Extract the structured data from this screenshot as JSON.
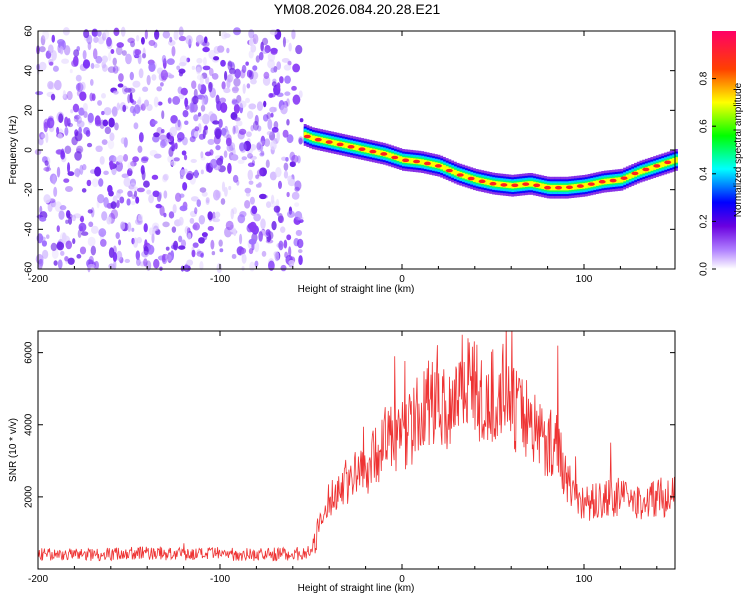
{
  "title": "YM08.2026.084.20.28.E21",
  "chart_data": [
    {
      "type": "heatmap",
      "xlabel": "Height of straight line (km)",
      "ylabel": "Frequency (Hz)",
      "xlim": [
        -200,
        150
      ],
      "ylim": [
        -60,
        60
      ],
      "x_ticks": [
        "-200",
        "-100",
        "0",
        "100"
      ],
      "y_ticks": [
        "-60",
        "-40",
        "-20",
        "0",
        "20",
        "40",
        "60"
      ],
      "colorbar": {
        "label": "Normalized spectral amplitude",
        "range": [
          0,
          1
        ],
        "ticks": [
          "0.0",
          "0.2",
          "0.4",
          "0.6",
          "0.8"
        ],
        "colors": [
          "#ffffff",
          "#8a2be2",
          "#0000ff",
          "#00ffff",
          "#00ff00",
          "#ffff00",
          "#ff0000",
          "#ff0080"
        ]
      },
      "noise_region": {
        "x_range": [
          -200,
          -55
        ],
        "color": "#7b2ff7"
      },
      "signal_ridge": {
        "x": [
          -60,
          -50,
          -40,
          -30,
          -20,
          -10,
          0,
          10,
          20,
          30,
          40,
          50,
          60,
          70,
          80,
          90,
          100,
          110,
          120,
          130,
          140,
          150
        ],
        "y": [
          10,
          6,
          4,
          2,
          0,
          -2,
          -5,
          -6,
          -8,
          -12,
          -15,
          -17,
          -18,
          -17,
          -19,
          -19,
          -18,
          -16,
          -15,
          -11,
          -8,
          -5
        ]
      }
    },
    {
      "type": "line",
      "xlabel": "Height of straight line (km)",
      "ylabel": "SNR (10 * v/v)",
      "xlim": [
        -200,
        150
      ],
      "ylim": [
        0,
        6600
      ],
      "x_ticks": [
        "-200",
        "-100",
        "0",
        "100"
      ],
      "y_ticks": [
        "2000",
        "4000",
        "6000"
      ],
      "color": "#ee3333",
      "series": [
        {
          "x": [
            -200,
            -180,
            -160,
            -140,
            -120,
            -100,
            -80,
            -60,
            -50,
            -45,
            -40,
            -35,
            -30,
            -25,
            -20,
            -15,
            -10,
            -5,
            0,
            5,
            10,
            15,
            20,
            25,
            30,
            35,
            40,
            45,
            50,
            55,
            60,
            65,
            70,
            75,
            80,
            85,
            90,
            95,
            100,
            110,
            120,
            130,
            140,
            150
          ],
          "y": [
            400,
            400,
            420,
            450,
            400,
            420,
            400,
            420,
            450,
            1200,
            1900,
            2200,
            2500,
            2600,
            2800,
            3100,
            3600,
            3600,
            3700,
            3900,
            4300,
            4600,
            4900,
            4300,
            5100,
            5400,
            5100,
            4300,
            4800,
            5000,
            4500,
            4300,
            4200,
            3800,
            3500,
            3500,
            2600,
            2000,
            1800,
            1900,
            2000,
            1800,
            2000,
            2000
          ]
        }
      ]
    }
  ]
}
